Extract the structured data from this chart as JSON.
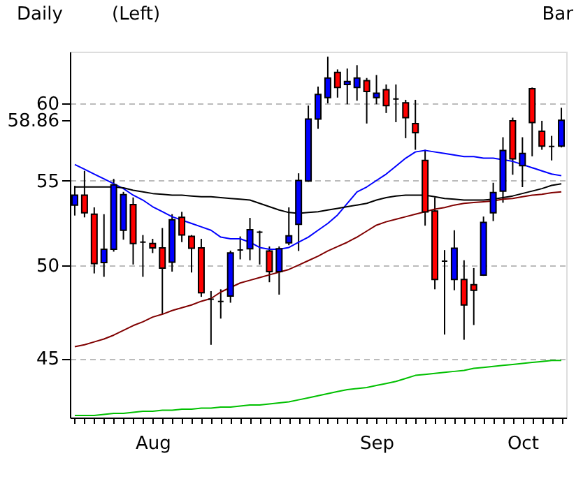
{
  "chart_data": {
    "type": "candlestick",
    "categories": [
      null,
      null,
      null,
      null,
      null,
      null,
      null,
      null,
      "Aug",
      null,
      null,
      null,
      null,
      null,
      null,
      null,
      null,
      null,
      null,
      null,
      null,
      null,
      null,
      null,
      null,
      null,
      null,
      null,
      null,
      null,
      null,
      "Sep",
      null,
      null,
      null,
      null,
      null,
      null,
      null,
      null,
      null,
      null,
      null,
      null,
      null,
      null,
      "Oct",
      null,
      null,
      null,
      null
    ],
    "ohlc": [
      [
        53.5,
        54.67,
        52.87,
        54.1
      ],
      [
        54.1,
        55.6,
        52.76,
        53.03
      ],
      [
        52.95,
        53.36,
        49.53,
        50.08
      ],
      [
        50.14,
        52.95,
        49.34,
        50.9
      ],
      [
        50.9,
        55.1,
        50.76,
        54.73
      ],
      [
        52.0,
        54.3,
        51.45,
        54.13
      ],
      [
        53.53,
        53.96,
        50.03,
        51.23
      ],
      [
        51.31,
        51.72,
        49.34,
        51.31
      ],
      [
        51.23,
        51.5,
        50.68,
        50.98
      ],
      [
        50.98,
        52.13,
        47.33,
        49.83
      ],
      [
        50.16,
        52.95,
        49.63,
        52.62
      ],
      [
        52.76,
        53.09,
        51.31,
        51.72
      ],
      [
        51.64,
        51.72,
        49.58,
        50.96
      ],
      [
        50.98,
        51.5,
        48.24,
        48.46
      ],
      [
        48.11,
        48.55,
        45.7,
        48.11
      ],
      [
        47.99,
        48.65,
        47.07,
        47.99
      ],
      [
        48.28,
        50.82,
        47.92,
        50.69
      ],
      [
        50.86,
        51.64,
        50.32,
        50.86
      ],
      [
        50.93,
        52.73,
        50.27,
        52.03
      ],
      [
        51.89,
        51.97,
        50.03,
        51.89
      ],
      [
        50.8,
        51.06,
        49.04,
        49.63
      ],
      [
        49.63,
        51.06,
        48.36,
        50.93
      ],
      [
        51.27,
        53.36,
        51.13,
        51.67
      ],
      [
        52.35,
        55.45,
        50.8,
        55.0
      ],
      [
        54.97,
        59.85,
        54.92,
        58.95
      ],
      [
        58.95,
        61.14,
        58.3,
        60.6
      ],
      [
        60.39,
        63.24,
        60.0,
        61.74
      ],
      [
        62.13,
        62.34,
        60.39,
        61.08
      ],
      [
        61.29,
        62.4,
        59.94,
        61.5
      ],
      [
        61.08,
        62.64,
        60.18,
        61.74
      ],
      [
        61.56,
        61.74,
        58.65,
        60.81
      ],
      [
        60.39,
        61.95,
        59.94,
        60.69
      ],
      [
        60.93,
        61.29,
        59.35,
        59.85
      ],
      [
        60.3,
        61.29,
        58.74,
        60.3
      ],
      [
        60.03,
        60.24,
        57.69,
        59.04
      ],
      [
        58.65,
        60.24,
        56.94,
        58.05
      ],
      [
        56.26,
        56.94,
        52.27,
        53.09
      ],
      [
        53.14,
        53.96,
        48.65,
        49.19
      ],
      [
        50.22,
        50.85,
        46.23,
        50.22
      ],
      [
        49.19,
        52.0,
        48.6,
        50.96
      ],
      [
        49.19,
        50.27,
        45.96,
        47.8
      ],
      [
        48.9,
        49.83,
        46.73,
        48.6
      ],
      [
        49.44,
        52.81,
        49.39,
        52.46
      ],
      [
        53.03,
        54.86,
        52.54,
        54.26
      ],
      [
        54.34,
        57.75,
        53.64,
        56.9
      ],
      [
        58.83,
        59.04,
        55.36,
        56.36
      ],
      [
        55.93,
        57.75,
        54.59,
        56.71
      ],
      [
        61.0,
        61.08,
        56.52,
        58.71
      ],
      [
        58.14,
        58.83,
        56.94,
        57.18
      ],
      [
        57.15,
        57.84,
        56.26,
        57.15
      ],
      [
        57.18,
        59.7,
        57.09,
        58.86
      ]
    ],
    "colors": [
      "#0000ff",
      "#ff0000",
      "#ff0000",
      "#0000ff",
      "#0000ff",
      "#0000ff",
      "#ff0000",
      "#000000",
      "#ff0000",
      "#ff0000",
      "#0000ff",
      "#ff0000",
      "#ff0000",
      "#ff0000",
      "#000000",
      "#000000",
      "#0000ff",
      "#000000",
      "#0000ff",
      "#000000",
      "#ff0000",
      "#0000ff",
      "#0000ff",
      "#0000ff",
      "#0000ff",
      "#0000ff",
      "#0000ff",
      "#ff0000",
      "#0000ff",
      "#0000ff",
      "#ff0000",
      "#0000ff",
      "#ff0000",
      "#000000",
      "#ff0000",
      "#ff0000",
      "#ff0000",
      "#ff0000",
      "#000000",
      "#0000ff",
      "#ff0000",
      "#ff0000",
      "#0000ff",
      "#0000ff",
      "#0000ff",
      "#ff0000",
      "#0000ff",
      "#ff0000",
      "#ff0000",
      "#000000",
      "#0000ff"
    ],
    "series": [
      {
        "type": "line",
        "color": "#0000ff",
        "values": [
          56.0,
          55.7,
          55.4,
          55.1,
          54.8,
          54.5,
          54.1,
          53.8,
          53.4,
          53.1,
          52.8,
          52.6,
          52.4,
          52.2,
          52.0,
          51.6,
          51.5,
          51.5,
          51.3,
          51.0,
          50.9,
          50.9,
          51.0,
          51.3,
          51.6,
          52.0,
          52.4,
          52.9,
          53.6,
          54.3,
          54.6,
          55.0,
          55.4,
          55.9,
          56.4,
          56.8,
          56.9,
          56.8,
          56.7,
          56.6,
          56.5,
          56.5,
          56.4,
          56.4,
          56.3,
          56.2,
          56.0,
          55.8,
          55.6,
          55.4,
          55.3
        ]
      },
      {
        "type": "line",
        "color": "#000000",
        "values": [
          54.6,
          54.6,
          54.6,
          54.6,
          54.6,
          54.55,
          54.4,
          54.3,
          54.2,
          54.15,
          54.1,
          54.1,
          54.05,
          54.0,
          54.0,
          53.95,
          53.9,
          53.85,
          53.8,
          53.6,
          53.4,
          53.2,
          53.05,
          53.0,
          53.05,
          53.1,
          53.2,
          53.3,
          53.4,
          53.5,
          53.6,
          53.8,
          53.95,
          54.05,
          54.1,
          54.1,
          54.1,
          54.0,
          53.9,
          53.85,
          53.8,
          53.8,
          53.8,
          53.85,
          53.95,
          54.05,
          54.2,
          54.35,
          54.5,
          54.7,
          54.8
        ]
      },
      {
        "type": "line",
        "color": "#800000",
        "values": [
          45.6,
          45.7,
          45.85,
          46.0,
          46.2,
          46.45,
          46.7,
          46.9,
          47.15,
          47.3,
          47.5,
          47.65,
          47.8,
          48.0,
          48.15,
          48.5,
          48.75,
          49.0,
          49.15,
          49.3,
          49.45,
          49.6,
          49.75,
          50.0,
          50.25,
          50.5,
          50.8,
          51.05,
          51.3,
          51.6,
          51.95,
          52.3,
          52.5,
          52.65,
          52.8,
          52.95,
          53.1,
          53.25,
          53.35,
          53.5,
          53.6,
          53.65,
          53.7,
          53.75,
          53.85,
          53.9,
          54.0,
          54.1,
          54.15,
          54.25,
          54.3
        ]
      },
      {
        "type": "line",
        "color": "#00c000",
        "values": [
          42.2,
          42.2,
          42.2,
          42.25,
          42.3,
          42.3,
          42.35,
          42.4,
          42.4,
          42.45,
          42.45,
          42.5,
          42.5,
          42.55,
          42.55,
          42.6,
          42.6,
          42.65,
          42.7,
          42.7,
          42.75,
          42.8,
          42.85,
          42.95,
          43.05,
          43.15,
          43.25,
          43.35,
          43.45,
          43.5,
          43.55,
          43.65,
          43.75,
          43.85,
          44.0,
          44.15,
          44.2,
          44.25,
          44.3,
          44.35,
          44.4,
          44.5,
          44.55,
          44.6,
          44.65,
          44.7,
          44.75,
          44.8,
          44.85,
          44.9,
          44.9
        ]
      }
    ],
    "ylim": [
      42.1,
      63.6
    ],
    "yticks": [
      45,
      50,
      55,
      58.86,
      60
    ],
    "log": true,
    "grid": "y",
    "annotations": [
      "Daily",
      "(Left)",
      "Bar"
    ]
  }
}
